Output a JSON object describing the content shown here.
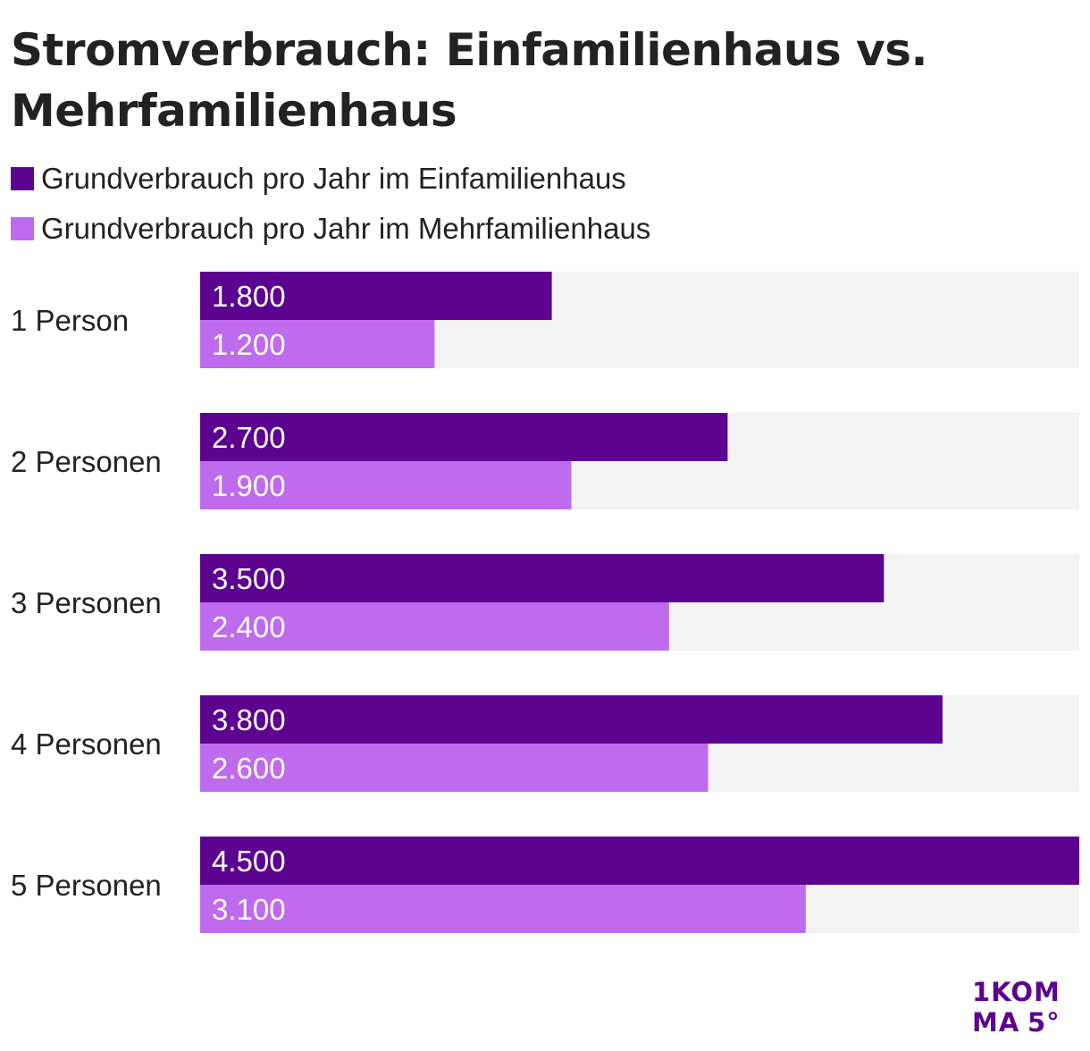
{
  "title": "Stromverbrauch: Einfamilienhaus vs. Mehrfamilienhaus",
  "logo_text": "1KOMMA5°",
  "colors": {
    "einfamilienhaus": "#5c0490",
    "mehrfamilienhaus": "#bf6bed",
    "track": "#f3f3f3"
  },
  "chart_data": {
    "type": "bar",
    "orientation": "horizontal",
    "title": "Stromverbrauch: Einfamilienhaus vs. Mehrfamilienhaus",
    "categories": [
      "1 Person",
      "2 Personen",
      "3 Personen",
      "4 Personen",
      "5 Personen"
    ],
    "series": [
      {
        "name": "Grundverbrauch pro Jahr im Einfamilienhaus",
        "values": [
          1800,
          2700,
          3500,
          3800,
          4500
        ],
        "labels": [
          "1.800",
          "2.700",
          "3.500",
          "3.800",
          "4.500"
        ]
      },
      {
        "name": "Grundverbrauch pro Jahr im Mehrfamilienhaus",
        "values": [
          1200,
          1900,
          2400,
          2600,
          3100
        ],
        "labels": [
          "1.200",
          "1.900",
          "2.400",
          "2.600",
          "3.100"
        ]
      }
    ],
    "xlim": [
      0,
      4500
    ],
    "xlabel": "",
    "ylabel": "",
    "legend": "top-left",
    "grid": false
  }
}
